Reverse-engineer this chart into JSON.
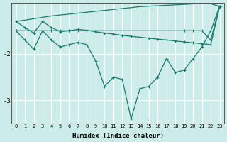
{
  "xlabel": "Humidex (Indice chaleur)",
  "bg_color": "#ccecea",
  "grid_color": "#ffffff",
  "line_color": "#1a7a6e",
  "ylim": [
    -3.5,
    -0.9
  ],
  "xlim": [
    -0.5,
    23.5
  ],
  "line1_x": [
    0,
    1,
    2,
    3,
    4,
    5,
    6,
    7,
    8,
    9,
    10,
    11,
    12,
    13,
    14,
    15,
    16,
    17,
    18,
    19,
    20,
    21,
    22,
    23
  ],
  "line1_y": [
    -1.3,
    -1.27,
    -1.24,
    -1.21,
    -1.18,
    -1.16,
    -1.14,
    -1.12,
    -1.1,
    -1.08,
    -1.06,
    -1.04,
    -1.02,
    -1.0,
    -0.98,
    -0.97,
    -0.96,
    -0.95,
    -0.94,
    -0.93,
    -0.92,
    -0.91,
    -0.92,
    -0.97
  ],
  "line2_x": [
    0,
    1,
    2,
    3,
    4,
    5,
    6,
    7,
    8,
    9,
    10,
    11,
    12,
    13,
    14,
    15,
    16,
    17,
    18,
    19,
    20,
    21,
    22,
    23
  ],
  "line2_y": [
    -1.3,
    -1.43,
    -1.55,
    -1.3,
    -1.43,
    -1.52,
    -1.5,
    -1.47,
    -1.49,
    -1.52,
    -1.55,
    -1.57,
    -1.6,
    -1.62,
    -1.64,
    -1.66,
    -1.68,
    -1.7,
    -1.72,
    -1.74,
    -1.76,
    -1.78,
    -1.8,
    -0.98
  ],
  "line3_x": [
    0,
    3,
    4,
    5,
    6,
    7,
    8,
    9,
    19,
    20,
    21,
    22,
    23
  ],
  "line3_y": [
    -1.5,
    -1.5,
    -1.5,
    -1.5,
    -1.5,
    -1.5,
    -1.5,
    -1.5,
    -1.5,
    -1.5,
    -1.5,
    -1.7,
    -0.97
  ],
  "line4_x": [
    0,
    1,
    2,
    3,
    4,
    5,
    6,
    7,
    8,
    9,
    10,
    11,
    12,
    13,
    14,
    15,
    16,
    17,
    18,
    19,
    20,
    21,
    22,
    23
  ],
  "line4_y": [
    -1.5,
    -1.7,
    -1.9,
    -1.5,
    -1.7,
    -1.85,
    -1.8,
    -1.75,
    -1.8,
    -2.15,
    -2.7,
    -2.5,
    -2.55,
    -3.4,
    -2.75,
    -2.7,
    -2.5,
    -2.1,
    -2.4,
    -2.35,
    -2.1,
    -1.85,
    -1.5,
    -0.97
  ],
  "yticks": [
    -3,
    -2
  ],
  "ytick_labels": [
    "-3",
    "-2"
  ]
}
